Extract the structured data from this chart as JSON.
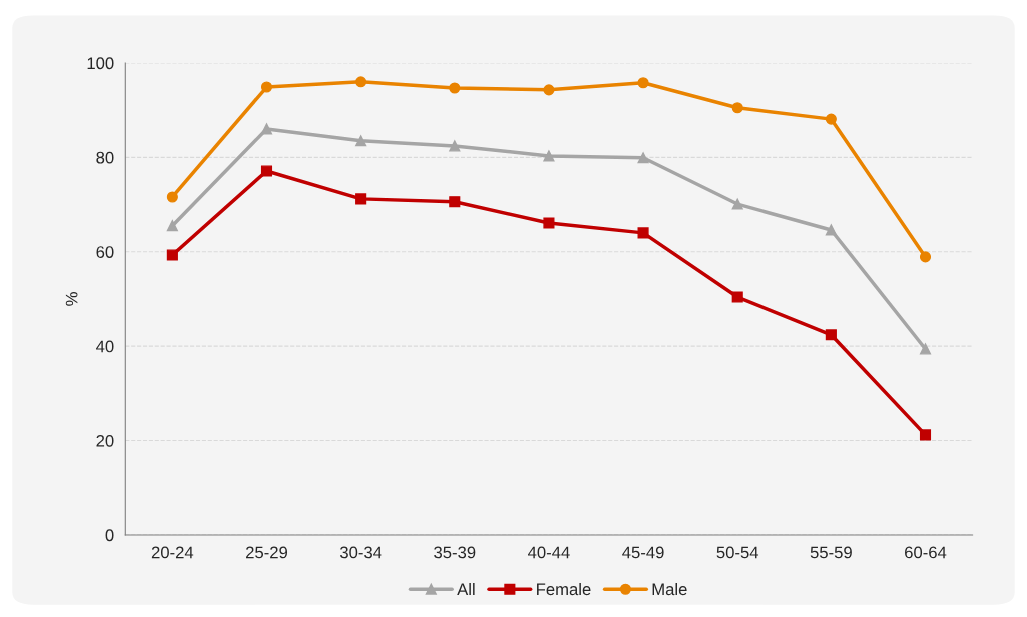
{
  "chart_data": {
    "type": "line",
    "ylabel": "%",
    "categories": [
      "20-24",
      "25-29",
      "30-34",
      "35-39",
      "40-44",
      "45-49",
      "50-54",
      "55-59",
      "60-64"
    ],
    "series": [
      {
        "name": "All",
        "color": "#a5a5a5",
        "marker": "triangle",
        "values": [
          65.5,
          86.0,
          83.5,
          82.4,
          80.3,
          79.9,
          70.1,
          64.6,
          39.4
        ]
      },
      {
        "name": "Female",
        "color": "#c00000",
        "marker": "square",
        "values": [
          59.3,
          77.1,
          71.2,
          70.6,
          66.1,
          64.0,
          50.4,
          42.4,
          21.2
        ]
      },
      {
        "name": "Male",
        "color": "#e98300",
        "marker": "circle",
        "values": [
          71.6,
          94.9,
          96.0,
          94.7,
          94.3,
          95.8,
          90.5,
          88.1,
          58.9
        ]
      }
    ],
    "ylim": [
      0,
      100
    ],
    "yticks": [
      0,
      20,
      40,
      60,
      80,
      100
    ],
    "grid": "y",
    "legend": "bottom",
    "line_style": "solid"
  }
}
